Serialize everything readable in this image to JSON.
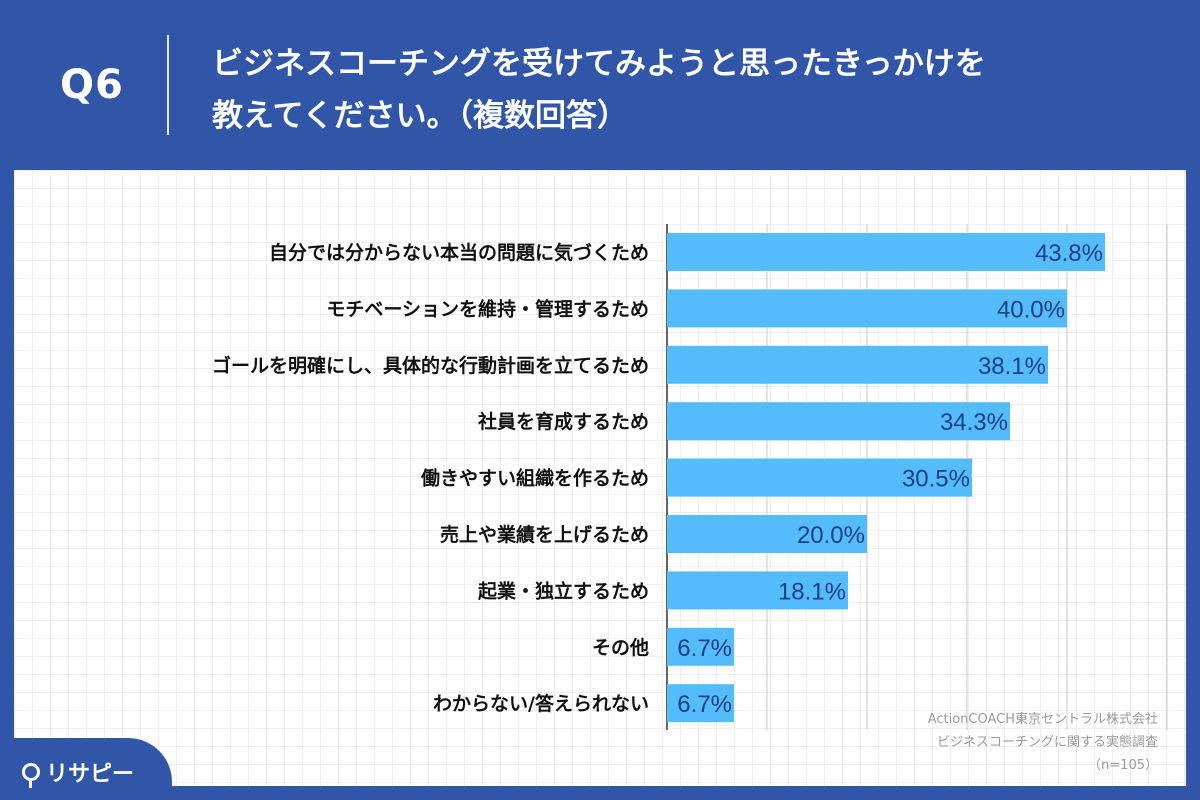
{
  "header": {
    "question_label": "Q6",
    "title_line1": "ビジネスコーチングを受けてみようと思ったきっかけを",
    "title_line2": "教えてください。（複数回答）"
  },
  "credit": {
    "line1": "ActionCOACH東京セントラル株式会社",
    "line2": "ビジネスコーチングに関する実態調査",
    "line3": "（n=105）"
  },
  "logo": {
    "text": "リサピー",
    "icon": "pin-icon"
  },
  "colors": {
    "background": "#3156a8",
    "bar": "#55bcfb",
    "value_text": "#1c3f86"
  },
  "chart_data": {
    "type": "bar",
    "orientation": "horizontal",
    "categories": [
      "自分では分からない本当の問題に気づくため",
      "モチベーションを維持・管理するため",
      "ゴールを明確にし、具体的な行動計画を立てるため",
      "社員を育成するため",
      "働きやすい組織を作るため",
      "売上や業績を上げるため",
      "起業・独立するため",
      "その他",
      "わからない/答えられない"
    ],
    "values": [
      43.8,
      40.0,
      38.1,
      34.3,
      30.5,
      20.0,
      18.1,
      6.7,
      6.7
    ],
    "value_labels": [
      "43.8%",
      "40.0%",
      "38.1%",
      "34.3%",
      "30.5%",
      "20.0%",
      "18.1%",
      "6.7%",
      "6.7%"
    ],
    "unit": "%",
    "xlim": [
      0,
      50
    ],
    "grid": true,
    "legend": "none"
  }
}
